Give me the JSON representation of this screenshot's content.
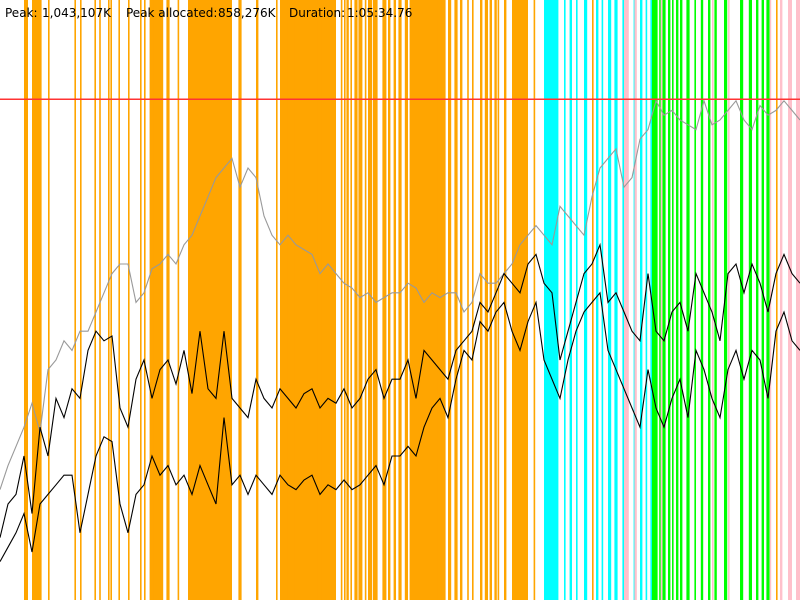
{
  "header": {
    "peak_label": "Peak:",
    "peak_value": "1,043,107K",
    "peak_allocated_label": "Peak allocated:",
    "peak_allocated_value": "858,276K",
    "duration_label": "Duration:",
    "duration_value": "1:05:34.76"
  },
  "colors": {
    "phase_gc": "#ffa500",
    "phase_cyan": "#00ffff",
    "phase_green": "#00ff00",
    "phase_pink": "#ffc0cb",
    "peak_line": "#ff3333",
    "series_black": "#000000",
    "series_gray": "#999999",
    "background": "#ffffff"
  },
  "chart_data": {
    "type": "line",
    "title": "",
    "xlabel": "",
    "ylabel": "",
    "peak_kb": 1043107,
    "peak_allocated_kb": 858276,
    "duration": "1:05:34.76",
    "ylim_kb": [
      0,
      1250000
    ],
    "grid": false,
    "legend": "none",
    "phase_bands": [
      {
        "color": "#ffa500",
        "spans": [
          [
            0.04,
            0.051
          ],
          [
            0.124,
            0.126
          ],
          [
            0.187,
            0.204
          ],
          [
            0.236,
            0.29
          ],
          [
            0.35,
            0.42
          ],
          [
            0.47,
            0.472
          ],
          [
            0.512,
            0.556
          ],
          [
            0.568,
            0.572
          ],
          [
            0.59,
            0.592
          ],
          [
            0.64,
            0.66
          ],
          [
            0.683,
            0.686
          ],
          [
            0.694,
            0.696
          ],
          [
            0.74,
            0.742
          ],
          [
            0.78,
            0.782
          ],
          [
            0.885,
            0.887
          ],
          [
            0.925,
            0.927
          ],
          [
            0.97,
            0.972
          ],
          [
            0.999,
            1.0
          ],
          [
            0.03,
            0.035
          ],
          [
            0.05,
            0.052
          ],
          [
            0.06,
            0.062
          ],
          [
            0.093,
            0.095
          ],
          [
            0.1,
            0.102
          ],
          [
            0.118,
            0.12
          ],
          [
            0.135,
            0.137
          ],
          [
            0.138,
            0.14
          ],
          [
            0.148,
            0.15
          ],
          [
            0.16,
            0.162
          ],
          [
            0.175,
            0.177
          ],
          [
            0.18,
            0.182
          ],
          [
            0.192,
            0.194
          ],
          [
            0.208,
            0.212
          ],
          [
            0.222,
            0.224
          ],
          [
            0.235,
            0.237
          ],
          [
            0.243,
            0.249
          ],
          [
            0.255,
            0.257
          ],
          [
            0.298,
            0.302
          ],
          [
            0.32,
            0.323
          ],
          [
            0.345,
            0.347
          ],
          [
            0.359,
            0.362
          ],
          [
            0.365,
            0.368
          ],
          [
            0.375,
            0.377
          ],
          [
            0.38,
            0.382
          ],
          [
            0.385,
            0.387
          ],
          [
            0.397,
            0.399
          ],
          [
            0.402,
            0.404
          ],
          [
            0.41,
            0.412
          ],
          [
            0.426,
            0.428
          ],
          [
            0.43,
            0.432
          ],
          [
            0.433,
            0.436
          ],
          [
            0.438,
            0.44
          ],
          [
            0.443,
            0.447
          ],
          [
            0.448,
            0.453
          ],
          [
            0.456,
            0.458
          ],
          [
            0.46,
            0.465
          ],
          [
            0.466,
            0.47
          ],
          [
            0.478,
            0.483
          ],
          [
            0.485,
            0.488
          ],
          [
            0.492,
            0.495
          ],
          [
            0.498,
            0.502
          ],
          [
            0.506,
            0.51
          ],
          [
            0.521,
            0.524
          ],
          [
            0.526,
            0.53
          ],
          [
            0.533,
            0.535
          ],
          [
            0.547,
            0.549
          ],
          [
            0.552,
            0.557
          ],
          [
            0.56,
            0.564
          ],
          [
            0.575,
            0.578
          ],
          [
            0.584,
            0.586
          ],
          [
            0.6,
            0.603
          ],
          [
            0.606,
            0.61
          ],
          [
            0.612,
            0.615
          ],
          [
            0.618,
            0.621
          ],
          [
            0.622,
            0.624
          ],
          [
            0.63,
            0.633
          ],
          [
            0.667,
            0.669
          ]
        ]
      },
      {
        "color": "#00ffff",
        "spans": [
          [
            0.68,
            0.698
          ],
          [
            0.705,
            0.707
          ],
          [
            0.712,
            0.715
          ],
          [
            0.72,
            0.722
          ],
          [
            0.73,
            0.734
          ],
          [
            0.745,
            0.748
          ],
          [
            0.752,
            0.754
          ],
          [
            0.76,
            0.764
          ],
          [
            0.768,
            0.772
          ],
          [
            0.778,
            0.781
          ],
          [
            0.792,
            0.795
          ],
          [
            0.8,
            0.803
          ],
          [
            0.807,
            0.809
          ],
          [
            0.813,
            0.815
          ]
        ]
      },
      {
        "color": "#00ff00",
        "spans": [
          [
            0.815,
            0.822
          ],
          [
            0.824,
            0.826
          ],
          [
            0.828,
            0.832
          ],
          [
            0.835,
            0.838
          ],
          [
            0.84,
            0.842
          ],
          [
            0.845,
            0.848
          ],
          [
            0.85,
            0.853
          ],
          [
            0.858,
            0.862
          ],
          [
            0.868,
            0.87
          ],
          [
            0.876,
            0.879
          ],
          [
            0.885,
            0.888
          ],
          [
            0.893,
            0.896
          ],
          [
            0.905,
            0.909
          ],
          [
            0.925,
            0.929
          ],
          [
            0.936,
            0.94
          ],
          [
            0.945,
            0.948
          ],
          [
            0.952,
            0.955
          ],
          [
            0.958,
            0.962
          ]
        ]
      },
      {
        "color": "#ffc0cb",
        "spans": [
          [
            0.78,
            0.786
          ],
          [
            0.793,
            0.796
          ],
          [
            0.826,
            0.828
          ],
          [
            0.89,
            0.892
          ],
          [
            0.91,
            0.912
          ],
          [
            0.962,
            0.964
          ],
          [
            0.975,
            0.978
          ],
          [
            0.985,
            0.99
          ],
          [
            0.995,
            1.0
          ]
        ]
      }
    ],
    "series": [
      {
        "color": "#999999",
        "x": [
          0.0,
          0.01,
          0.02,
          0.03,
          0.04,
          0.05,
          0.06,
          0.07,
          0.08,
          0.09,
          0.1,
          0.11,
          0.12,
          0.13,
          0.14,
          0.15,
          0.16,
          0.17,
          0.18,
          0.19,
          0.2,
          0.21,
          0.22,
          0.23,
          0.24,
          0.25,
          0.26,
          0.27,
          0.28,
          0.29,
          0.3,
          0.31,
          0.32,
          0.33,
          0.34,
          0.35,
          0.36,
          0.37,
          0.38,
          0.39,
          0.4,
          0.41,
          0.42,
          0.43,
          0.44,
          0.45,
          0.46,
          0.47,
          0.48,
          0.49,
          0.5,
          0.51,
          0.52,
          0.53,
          0.54,
          0.55,
          0.56,
          0.57,
          0.58,
          0.59,
          0.6,
          0.61,
          0.62,
          0.63,
          0.64,
          0.65,
          0.66,
          0.67,
          0.68,
          0.69,
          0.7,
          0.71,
          0.72,
          0.73,
          0.74,
          0.75,
          0.76,
          0.77,
          0.78,
          0.79,
          0.8,
          0.81,
          0.82,
          0.83,
          0.84,
          0.85,
          0.86,
          0.87,
          0.88,
          0.89,
          0.9,
          0.91,
          0.92,
          0.93,
          0.94,
          0.95,
          0.96,
          0.97,
          0.98,
          0.99,
          1.0
        ],
        "y": [
          230000,
          280000,
          320000,
          360000,
          410000,
          350000,
          480000,
          500000,
          540000,
          520000,
          560000,
          560000,
          600000,
          640000,
          680000,
          700000,
          700000,
          620000,
          640000,
          690000,
          700000,
          720000,
          700000,
          740000,
          760000,
          800000,
          840000,
          880000,
          900000,
          920000,
          860000,
          900000,
          880000,
          800000,
          760000,
          740000,
          760000,
          740000,
          730000,
          720000,
          680000,
          700000,
          680000,
          660000,
          650000,
          630000,
          640000,
          620000,
          630000,
          640000,
          640000,
          660000,
          650000,
          620000,
          640000,
          630000,
          640000,
          640000,
          600000,
          620000,
          680000,
          660000,
          660000,
          680000,
          700000,
          740000,
          760000,
          780000,
          760000,
          740000,
          820000,
          800000,
          780000,
          760000,
          840000,
          900000,
          920000,
          940000,
          860000,
          880000,
          960000,
          980000,
          1040000,
          1010000,
          1020000,
          1000000,
          990000,
          980000,
          1040000,
          990000,
          1000000,
          1020000,
          1040000,
          1000000,
          980000,
          1030000,
          1010000,
          1020000,
          1040000,
          1020000,
          1000000
        ]
      },
      {
        "color": "#000000",
        "x": [
          0.0,
          0.01,
          0.02,
          0.03,
          0.04,
          0.05,
          0.06,
          0.07,
          0.08,
          0.09,
          0.1,
          0.11,
          0.12,
          0.13,
          0.14,
          0.15,
          0.16,
          0.17,
          0.18,
          0.19,
          0.2,
          0.21,
          0.22,
          0.23,
          0.24,
          0.25,
          0.26,
          0.27,
          0.28,
          0.29,
          0.3,
          0.31,
          0.32,
          0.33,
          0.34,
          0.35,
          0.36,
          0.37,
          0.38,
          0.39,
          0.4,
          0.41,
          0.42,
          0.43,
          0.44,
          0.45,
          0.46,
          0.47,
          0.48,
          0.49,
          0.5,
          0.51,
          0.52,
          0.53,
          0.54,
          0.55,
          0.56,
          0.57,
          0.58,
          0.59,
          0.6,
          0.61,
          0.62,
          0.63,
          0.64,
          0.65,
          0.66,
          0.67,
          0.68,
          0.69,
          0.7,
          0.71,
          0.72,
          0.73,
          0.74,
          0.75,
          0.76,
          0.77,
          0.78,
          0.79,
          0.8,
          0.81,
          0.82,
          0.83,
          0.84,
          0.85,
          0.86,
          0.87,
          0.88,
          0.89,
          0.9,
          0.91,
          0.92,
          0.93,
          0.94,
          0.95,
          0.96,
          0.97,
          0.98,
          0.99,
          1.0
        ],
        "y": [
          130000,
          200000,
          220000,
          300000,
          180000,
          360000,
          300000,
          420000,
          380000,
          440000,
          420000,
          520000,
          560000,
          540000,
          550000,
          400000,
          360000,
          460000,
          500000,
          420000,
          480000,
          500000,
          450000,
          520000,
          430000,
          560000,
          440000,
          420000,
          560000,
          420000,
          400000,
          380000,
          460000,
          420000,
          400000,
          440000,
          420000,
          400000,
          430000,
          440000,
          400000,
          420000,
          410000,
          440000,
          400000,
          420000,
          460000,
          480000,
          420000,
          460000,
          460000,
          500000,
          420000,
          520000,
          500000,
          480000,
          460000,
          520000,
          540000,
          560000,
          620000,
          600000,
          640000,
          680000,
          660000,
          640000,
          700000,
          720000,
          660000,
          640000,
          500000,
          560000,
          620000,
          680000,
          700000,
          740000,
          620000,
          640000,
          600000,
          560000,
          540000,
          680000,
          560000,
          540000,
          600000,
          620000,
          560000,
          680000,
          640000,
          600000,
          540000,
          680000,
          700000,
          640000,
          700000,
          660000,
          600000,
          680000,
          720000,
          680000,
          660000
        ]
      },
      {
        "color": "#000000",
        "x": [
          0.0,
          0.01,
          0.02,
          0.03,
          0.04,
          0.05,
          0.06,
          0.07,
          0.08,
          0.09,
          0.1,
          0.11,
          0.12,
          0.13,
          0.14,
          0.15,
          0.16,
          0.17,
          0.18,
          0.19,
          0.2,
          0.21,
          0.22,
          0.23,
          0.24,
          0.25,
          0.26,
          0.27,
          0.28,
          0.29,
          0.3,
          0.31,
          0.32,
          0.33,
          0.34,
          0.35,
          0.36,
          0.37,
          0.38,
          0.39,
          0.4,
          0.41,
          0.42,
          0.43,
          0.44,
          0.45,
          0.46,
          0.47,
          0.48,
          0.49,
          0.5,
          0.51,
          0.52,
          0.53,
          0.54,
          0.55,
          0.56,
          0.57,
          0.58,
          0.59,
          0.6,
          0.61,
          0.62,
          0.63,
          0.64,
          0.65,
          0.66,
          0.67,
          0.68,
          0.69,
          0.7,
          0.71,
          0.72,
          0.73,
          0.74,
          0.75,
          0.76,
          0.77,
          0.78,
          0.79,
          0.8,
          0.81,
          0.82,
          0.83,
          0.84,
          0.85,
          0.86,
          0.87,
          0.88,
          0.89,
          0.9,
          0.91,
          0.92,
          0.93,
          0.94,
          0.95,
          0.96,
          0.97,
          0.98,
          0.99,
          1.0
        ],
        "y": [
          80000,
          110000,
          140000,
          180000,
          100000,
          200000,
          220000,
          240000,
          260000,
          260000,
          140000,
          220000,
          300000,
          340000,
          330000,
          200000,
          140000,
          220000,
          240000,
          300000,
          260000,
          280000,
          240000,
          260000,
          220000,
          280000,
          240000,
          200000,
          380000,
          240000,
          260000,
          220000,
          260000,
          240000,
          220000,
          260000,
          240000,
          230000,
          250000,
          260000,
          220000,
          240000,
          230000,
          250000,
          230000,
          240000,
          260000,
          280000,
          240000,
          300000,
          300000,
          320000,
          300000,
          360000,
          400000,
          420000,
          380000,
          460000,
          520000,
          500000,
          580000,
          560000,
          600000,
          620000,
          560000,
          520000,
          580000,
          620000,
          500000,
          460000,
          420000,
          500000,
          560000,
          600000,
          620000,
          640000,
          520000,
          480000,
          440000,
          400000,
          360000,
          480000,
          400000,
          360000,
          420000,
          460000,
          380000,
          520000,
          480000,
          420000,
          380000,
          480000,
          520000,
          460000,
          520000,
          500000,
          420000,
          560000,
          600000,
          540000,
          520000
        ]
      }
    ]
  }
}
